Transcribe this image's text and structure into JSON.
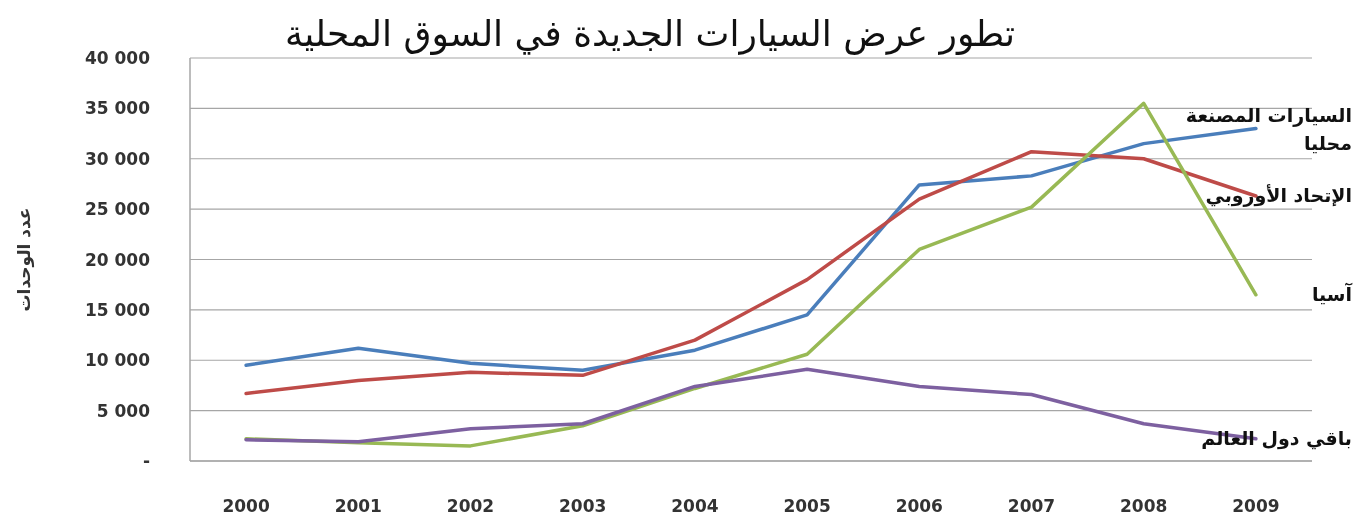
{
  "chart_data": {
    "type": "line",
    "title": "تطور عرض السيارات الجديدة في السوق المحلية",
    "ylabel": "عدد الوحدات",
    "categories": [
      "2000",
      "2001",
      "2002",
      "2003",
      "2004",
      "2005",
      "2006",
      "2007",
      "2008",
      "2009"
    ],
    "series": [
      {
        "name": "السيارات المصنعة محليا",
        "color": "#4a7ebb",
        "values": [
          9500,
          11200,
          9700,
          9000,
          11000,
          14500,
          27400,
          28300,
          31500,
          33000
        ]
      },
      {
        "name": "الإتحاد الأوروبي",
        "color": "#be4b48",
        "values": [
          6700,
          8000,
          8800,
          8500,
          12000,
          18000,
          26000,
          30700,
          30000,
          26300
        ]
      },
      {
        "name": "آسيا",
        "color": "#98b954",
        "values": [
          2200,
          1800,
          1500,
          3500,
          7200,
          10600,
          21000,
          25200,
          35500,
          16500
        ]
      },
      {
        "name": "باقي دول العالم",
        "color": "#7d60a0",
        "values": [
          2100,
          1900,
          3200,
          3700,
          7400,
          9100,
          7400,
          6600,
          3700,
          2200
        ]
      }
    ],
    "ylim": [
      0,
      40000
    ],
    "yticks": [
      {
        "value": 0,
        "label": "-"
      },
      {
        "value": 5000,
        "label": "5 000"
      },
      {
        "value": 10000,
        "label": "10 000"
      },
      {
        "value": 15000,
        "label": "15 000"
      },
      {
        "value": 20000,
        "label": "20 000"
      },
      {
        "value": 25000,
        "label": "25 000"
      },
      {
        "value": 30000,
        "label": "30 000"
      },
      {
        "value": 35000,
        "label": "35 000"
      },
      {
        "value": 40000,
        "label": "40 000"
      }
    ],
    "grid": "y",
    "marker": "none",
    "line_style": "solid"
  }
}
